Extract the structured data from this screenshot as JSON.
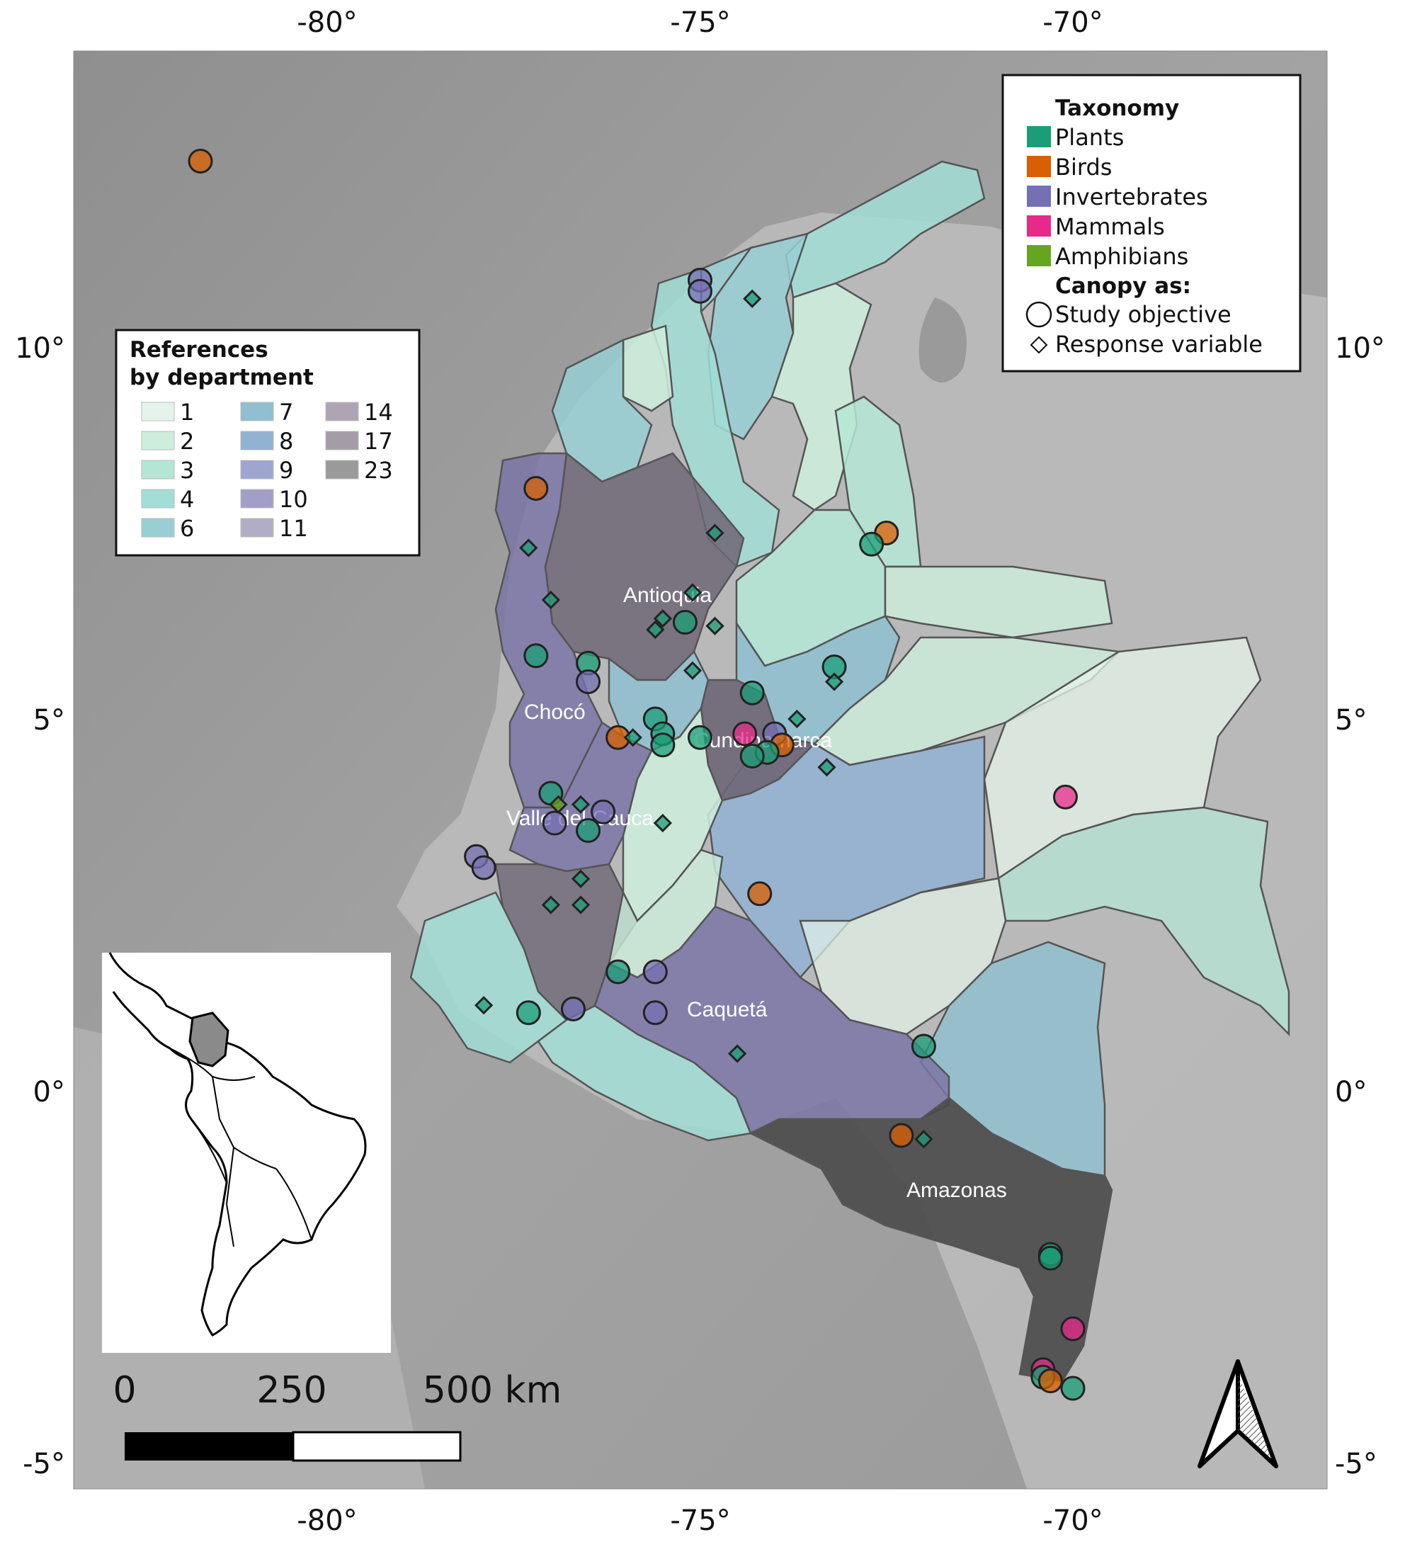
{
  "axes": {
    "top_ticks": [
      "-80°",
      "-75°",
      "-70°"
    ],
    "bottom_ticks": [
      "-80°",
      "-75°",
      "-70°"
    ],
    "left_ticks": [
      "10°",
      "5°",
      "0°",
      "-5°"
    ],
    "right_ticks": [
      "10°",
      "5°",
      "0°",
      "-5°"
    ],
    "lon_range": [
      -83.4,
      -66.6
    ],
    "lat_range": [
      13.9,
      -5.5
    ]
  },
  "taxonomy_legend": {
    "title": "Taxonomy",
    "items": [
      {
        "label": "Plants",
        "color": "#1b9e77"
      },
      {
        "label": "Birds",
        "color": "#d95f02"
      },
      {
        "label": "Invertebrates",
        "color": "#7570b3"
      },
      {
        "label": "Mammals",
        "color": "#e7298a"
      },
      {
        "label": "Amphibians",
        "color": "#66a61e"
      }
    ],
    "shape_title": "Canopy as:",
    "shapes": [
      {
        "label": "Study objective",
        "shape": "circle"
      },
      {
        "label": "Response variable",
        "shape": "diamond"
      }
    ]
  },
  "references_legend": {
    "title_line1": "References",
    "title_line2": "by department",
    "classes": [
      {
        "label": "1",
        "color": "#e4f4ea"
      },
      {
        "label": "2",
        "color": "#cdeedc"
      },
      {
        "label": "3",
        "color": "#b5e6d5"
      },
      {
        "label": "4",
        "color": "#a2ddd6"
      },
      {
        "label": "6",
        "color": "#98cfd4"
      },
      {
        "label": "7",
        "color": "#8fbfd0"
      },
      {
        "label": "8",
        "color": "#92b2d2"
      },
      {
        "label": "9",
        "color": "#9ea5cf"
      },
      {
        "label": "10",
        "color": "#a19ec7"
      },
      {
        "label": "11",
        "color": "#b0aec4"
      },
      {
        "label": "14",
        "color": "#aea4b4"
      },
      {
        "label": "17",
        "color": "#a49ca6"
      },
      {
        "label": "23",
        "color": "#9a9a9a"
      }
    ]
  },
  "department_labels": [
    "Antioquia",
    "Chocó",
    "Cundinamarca",
    "Valle del Cauca",
    "Caquetá",
    "Amazonas"
  ],
  "scale_bar": {
    "labels": [
      "0",
      "250",
      "500 km"
    ]
  },
  "inset": {
    "description_visible": false
  },
  "points": [
    {
      "lon": -81.7,
      "lat": 12.5,
      "taxon": "Birds",
      "shape": "circle"
    },
    {
      "lon": -75.0,
      "lat": 10.9,
      "taxon": "Invertebrates",
      "shape": "circle"
    },
    {
      "lon": -75.0,
      "lat": 10.75,
      "taxon": "Invertebrates",
      "shape": "circle"
    },
    {
      "lon": -74.3,
      "lat": 10.65,
      "taxon": "Plants",
      "shape": "diamond"
    },
    {
      "lon": -77.2,
      "lat": 8.1,
      "taxon": "Birds",
      "shape": "circle"
    },
    {
      "lon": -72.5,
      "lat": 7.5,
      "taxon": "Birds",
      "shape": "circle"
    },
    {
      "lon": -72.7,
      "lat": 7.35,
      "taxon": "Plants",
      "shape": "circle"
    },
    {
      "lon": -77.3,
      "lat": 7.3,
      "taxon": "Plants",
      "shape": "diamond"
    },
    {
      "lon": -74.8,
      "lat": 7.5,
      "taxon": "Plants",
      "shape": "diamond"
    },
    {
      "lon": -77.0,
      "lat": 6.6,
      "taxon": "Plants",
      "shape": "diamond"
    },
    {
      "lon": -75.1,
      "lat": 6.7,
      "taxon": "Plants",
      "shape": "diamond"
    },
    {
      "lon": -75.5,
      "lat": 6.35,
      "taxon": "Plants",
      "shape": "diamond"
    },
    {
      "lon": -75.2,
      "lat": 6.3,
      "taxon": "Plants",
      "shape": "circle"
    },
    {
      "lon": -74.8,
      "lat": 6.25,
      "taxon": "Plants",
      "shape": "diamond"
    },
    {
      "lon": -75.6,
      "lat": 6.2,
      "taxon": "Plants",
      "shape": "diamond"
    },
    {
      "lon": -77.2,
      "lat": 5.85,
      "taxon": "Plants",
      "shape": "circle"
    },
    {
      "lon": -76.5,
      "lat": 5.75,
      "taxon": "Plants",
      "shape": "circle"
    },
    {
      "lon": -76.5,
      "lat": 5.5,
      "taxon": "Invertebrates",
      "shape": "circle"
    },
    {
      "lon": -75.1,
      "lat": 5.65,
      "taxon": "Plants",
      "shape": "diamond"
    },
    {
      "lon": -73.2,
      "lat": 5.7,
      "taxon": "Plants",
      "shape": "circle"
    },
    {
      "lon": -73.2,
      "lat": 5.5,
      "taxon": "Plants",
      "shape": "diamond"
    },
    {
      "lon": -74.3,
      "lat": 5.35,
      "taxon": "Plants",
      "shape": "circle"
    },
    {
      "lon": -75.6,
      "lat": 5.0,
      "taxon": "Plants",
      "shape": "circle"
    },
    {
      "lon": -75.5,
      "lat": 4.8,
      "taxon": "Plants",
      "shape": "circle"
    },
    {
      "lon": -75.5,
      "lat": 4.65,
      "taxon": "Plants",
      "shape": "circle"
    },
    {
      "lon": -76.1,
      "lat": 4.75,
      "taxon": "Birds",
      "shape": "circle"
    },
    {
      "lon": -75.9,
      "lat": 4.75,
      "taxon": "Plants",
      "shape": "diamond"
    },
    {
      "lon": -74.4,
      "lat": 4.8,
      "taxon": "Mammals",
      "shape": "circle"
    },
    {
      "lon": -74.0,
      "lat": 4.8,
      "taxon": "Invertebrates",
      "shape": "circle"
    },
    {
      "lon": -73.9,
      "lat": 4.65,
      "taxon": "Birds",
      "shape": "circle"
    },
    {
      "lon": -74.1,
      "lat": 4.55,
      "taxon": "Plants",
      "shape": "circle"
    },
    {
      "lon": -74.3,
      "lat": 4.5,
      "taxon": "Plants",
      "shape": "circle"
    },
    {
      "lon": -73.7,
      "lat": 5.0,
      "taxon": "Plants",
      "shape": "diamond"
    },
    {
      "lon": -73.3,
      "lat": 4.35,
      "taxon": "Plants",
      "shape": "diamond"
    },
    {
      "lon": -75.0,
      "lat": 4.75,
      "taxon": "Plants",
      "shape": "circle"
    },
    {
      "lon": -77.0,
      "lat": 4.0,
      "taxon": "Plants",
      "shape": "circle"
    },
    {
      "lon": -76.9,
      "lat": 3.85,
      "taxon": "Amphibians",
      "shape": "diamond"
    },
    {
      "lon": -76.6,
      "lat": 3.85,
      "taxon": "Plants",
      "shape": "diamond"
    },
    {
      "lon": -76.3,
      "lat": 3.75,
      "taxon": "Invertebrates",
      "shape": "circle"
    },
    {
      "lon": -76.95,
      "lat": 3.6,
      "taxon": "Invertebrates",
      "shape": "circle"
    },
    {
      "lon": -76.5,
      "lat": 3.5,
      "taxon": "Plants",
      "shape": "circle"
    },
    {
      "lon": -75.5,
      "lat": 3.6,
      "taxon": "Plants",
      "shape": "diamond"
    },
    {
      "lon": -78.0,
      "lat": 3.15,
      "taxon": "Invertebrates",
      "shape": "circle"
    },
    {
      "lon": -77.9,
      "lat": 3.0,
      "taxon": "Invertebrates",
      "shape": "circle"
    },
    {
      "lon": -76.6,
      "lat": 2.85,
      "taxon": "Plants",
      "shape": "diamond"
    },
    {
      "lon": -74.2,
      "lat": 2.65,
      "taxon": "Birds",
      "shape": "circle"
    },
    {
      "lon": -77.0,
      "lat": 2.5,
      "taxon": "Plants",
      "shape": "diamond"
    },
    {
      "lon": -76.6,
      "lat": 2.5,
      "taxon": "Plants",
      "shape": "diamond"
    },
    {
      "lon": -76.1,
      "lat": 1.6,
      "taxon": "Plants",
      "shape": "circle"
    },
    {
      "lon": -75.6,
      "lat": 1.6,
      "taxon": "Invertebrates",
      "shape": "circle"
    },
    {
      "lon": -77.9,
      "lat": 1.15,
      "taxon": "Plants",
      "shape": "diamond"
    },
    {
      "lon": -77.3,
      "lat": 1.05,
      "taxon": "Plants",
      "shape": "circle"
    },
    {
      "lon": -76.7,
      "lat": 1.1,
      "taxon": "Invertebrates",
      "shape": "circle"
    },
    {
      "lon": -75.6,
      "lat": 1.05,
      "taxon": "Invertebrates",
      "shape": "circle"
    },
    {
      "lon": -74.5,
      "lat": 0.5,
      "taxon": "Plants",
      "shape": "diamond"
    },
    {
      "lon": -72.0,
      "lat": 0.6,
      "taxon": "Plants",
      "shape": "circle"
    },
    {
      "lon": -72.3,
      "lat": -0.6,
      "taxon": "Birds",
      "shape": "circle"
    },
    {
      "lon": -72.0,
      "lat": -0.65,
      "taxon": "Plants",
      "shape": "diamond"
    },
    {
      "lon": -70.3,
      "lat": -2.2,
      "taxon": "Plants",
      "shape": "circle"
    },
    {
      "lon": -70.3,
      "lat": -2.25,
      "taxon": "Plants",
      "shape": "circle"
    },
    {
      "lon": -70.0,
      "lat": -3.2,
      "taxon": "Mammals",
      "shape": "circle"
    },
    {
      "lon": -70.4,
      "lat": -3.75,
      "taxon": "Mammals",
      "shape": "circle"
    },
    {
      "lon": -70.4,
      "lat": -3.85,
      "taxon": "Plants",
      "shape": "circle"
    },
    {
      "lon": -70.3,
      "lat": -3.9,
      "taxon": "Birds",
      "shape": "circle"
    },
    {
      "lon": -70.0,
      "lat": -4.0,
      "taxon": "Plants",
      "shape": "circle"
    },
    {
      "lon": -70.1,
      "lat": 3.95,
      "taxon": "Mammals",
      "shape": "circle"
    }
  ]
}
